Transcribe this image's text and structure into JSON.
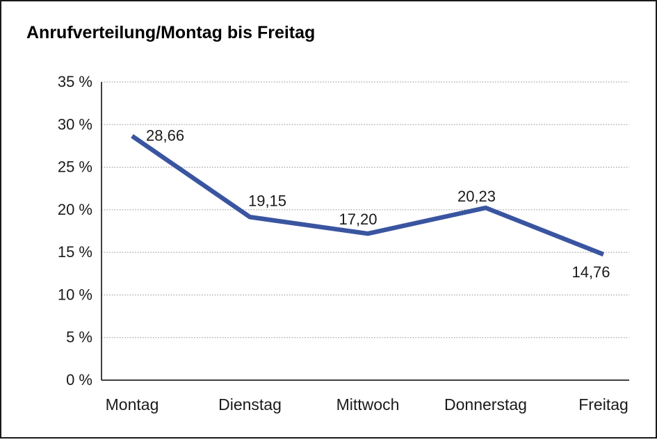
{
  "chart_data": {
    "type": "line",
    "title": "Anrufverteilung/Montag bis Freitag",
    "categories": [
      "Montag",
      "Dienstag",
      "Mittwoch",
      "Donnerstag",
      "Freitag"
    ],
    "series": [
      {
        "values": [
          28.66,
          19.15,
          17.2,
          20.23,
          14.76
        ],
        "value_labels": [
          "28,66",
          "19,15",
          "17,20",
          "20,23",
          "14,76"
        ],
        "color": "#3A55A0"
      }
    ],
    "xlabel": "",
    "ylabel": "",
    "ylim": [
      0,
      35
    ],
    "y_tick_step": 5,
    "y_tick_labels": [
      "0 %",
      "5 %",
      "10 %",
      "15 %",
      "20 %",
      "25 %",
      "30 %",
      "35 %"
    ],
    "grid": "horizontal-dotted",
    "legend": "none"
  },
  "colors": {
    "line": "#3A55A0",
    "grid": "#8a8a8a",
    "axis": "#000000",
    "text": "#1a1a1a",
    "background": "#ffffff",
    "frame_border": "#1a1a1a"
  }
}
